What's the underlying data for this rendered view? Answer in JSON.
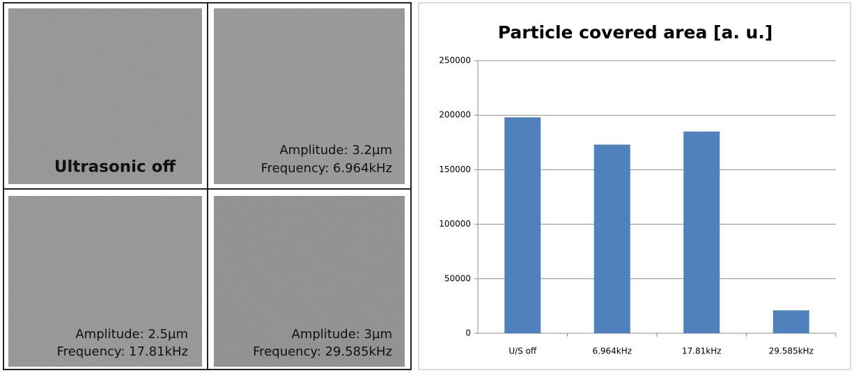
{
  "panels": [
    {
      "lines": [
        "Ultrasonic off"
      ]
    },
    {
      "lines": [
        "Amplitude: 3.2µm",
        "Frequency: 6.964kHz"
      ]
    },
    {
      "lines": [
        "Amplitude: 2.5µm",
        "Frequency: 17.81kHz"
      ]
    },
    {
      "lines": [
        "Amplitude: 3µm",
        "Frequency: 29.585kHz"
      ]
    }
  ],
  "chart_data": {
    "type": "bar",
    "title": "Particle covered area [a. u.]",
    "categories": [
      "U/S off",
      "6.964kHz",
      "17.81kHz",
      "29.585kHz"
    ],
    "values": [
      198000,
      173000,
      185000,
      21000
    ],
    "color": "#4f81bd",
    "ylim": [
      0,
      250000
    ],
    "yticks": [
      0,
      50000,
      100000,
      150000,
      200000,
      250000
    ],
    "grid": true
  }
}
